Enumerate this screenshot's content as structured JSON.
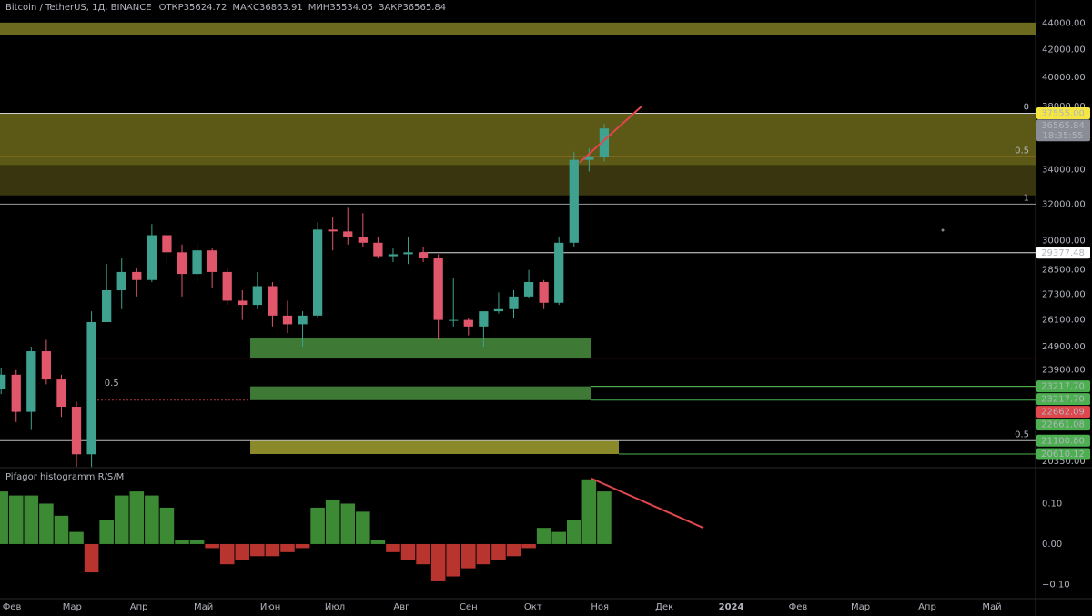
{
  "chart_data": [
    {
      "type": "candlestick",
      "title": "Bitcoin / TetherUS, 1Д, BINANCE",
      "ohlc_legend": [
        {
          "label": "ОТКР",
          "value": 35624.72
        },
        {
          "label": "МАКС",
          "value": 36863.91
        },
        {
          "label": "МИН",
          "value": 35534.05
        },
        {
          "label": "ЗАКР",
          "value": 36565.84
        }
      ],
      "x": [
        -5,
        2,
        9,
        16,
        23,
        30,
        37,
        44,
        51,
        58,
        65,
        72,
        79,
        86,
        93,
        100,
        107,
        114,
        121,
        128,
        135,
        142,
        149,
        156,
        163,
        170,
        177,
        184,
        191,
        198,
        205,
        212,
        219,
        226,
        233,
        240,
        247,
        254,
        261,
        268,
        275
      ],
      "open": [
        23100,
        23700,
        22200,
        24700,
        23500,
        22400,
        20600,
        26000,
        27500,
        28400,
        28000,
        30300,
        29400,
        28300,
        29500,
        28400,
        27000,
        26800,
        27700,
        26300,
        25900,
        26300,
        30600,
        30500,
        30200,
        29900,
        29200,
        29300,
        29400,
        29100,
        26100,
        26100,
        25800,
        26500,
        26600,
        27200,
        27900,
        26900,
        29900,
        34600,
        34800
      ],
      "high": [
        24000,
        23900,
        24900,
        25200,
        23700,
        22600,
        26500,
        28800,
        29100,
        28600,
        30900,
        30500,
        29800,
        29900,
        29600,
        28600,
        27500,
        28400,
        27900,
        27000,
        26500,
        31000,
        31300,
        31800,
        31500,
        30200,
        29600,
        30200,
        29700,
        29300,
        28100,
        26200,
        26500,
        27400,
        27500,
        28500,
        28000,
        30200,
        35100,
        35300,
        36863.91
      ],
      "low": [
        22900,
        21800,
        21500,
        23300,
        22000,
        20150,
        20150,
        26000,
        26600,
        27200,
        27900,
        28800,
        27200,
        27900,
        27600,
        26800,
        26100,
        26600,
        25800,
        25500,
        24900,
        26200,
        29500,
        29800,
        29700,
        29100,
        28900,
        28800,
        28900,
        25200,
        25800,
        25400,
        24900,
        26400,
        26200,
        27100,
        26600,
        26800,
        29700,
        33900,
        34500
      ],
      "close": [
        23700,
        22200,
        24700,
        23500,
        22400,
        20600,
        26000,
        27500,
        28400,
        28000,
        30300,
        29400,
        28300,
        29500,
        28400,
        27000,
        26800,
        27700,
        26300,
        25900,
        26300,
        30600,
        30500,
        30200,
        29900,
        29200,
        29300,
        29400,
        29100,
        26100,
        26100,
        25800,
        26500,
        26600,
        27200,
        27900,
        26900,
        29900,
        34600,
        34800,
        36565.84
      ],
      "up_color": "#3fa18f",
      "down_color": "#e0566b",
      "log_scale": true,
      "xlim": [
        -5.5,
        475.3
      ],
      "ylim": [
        20120,
        45850
      ],
      "yticks": [
        {
          "value": 44000,
          "label": "44000.00"
        },
        {
          "value": 42000,
          "label": "42000.00"
        },
        {
          "value": 40000,
          "label": "40000.00"
        },
        {
          "value": 38000,
          "label": "38000.00"
        },
        {
          "value": 34000,
          "label": "34000.00"
        },
        {
          "value": 32000,
          "label": "32000.00"
        },
        {
          "value": 30000,
          "label": "30000.00"
        },
        {
          "value": 28500,
          "label": "28500.00"
        },
        {
          "value": 27300,
          "label": "27300.00"
        },
        {
          "value": 26100,
          "label": "26100.00"
        },
        {
          "value": 24900,
          "label": "24900.00"
        },
        {
          "value": 23900,
          "label": "23900.00"
        },
        {
          "value": 20350,
          "label": "20350.00"
        }
      ],
      "zones": [
        {
          "from": 44060,
          "to": 43100,
          "x": [
            -5.5,
            475.3
          ],
          "color": "#6b6a1f"
        },
        {
          "from": 37555,
          "to": 34270,
          "x": [
            -5.5,
            475.3
          ],
          "color": "#5c5816"
        },
        {
          "from": 34270,
          "to": 32500,
          "x": [
            -5.5,
            475.3
          ],
          "color": "#38350f"
        },
        {
          "from": 25260,
          "to": 24400,
          "x": [
            110.7,
            269.1
          ],
          "color": "#3e7a36"
        },
        {
          "from": 23217.7,
          "to": 22661.08,
          "x": [
            110.7,
            269.1
          ],
          "color": "#3e7a36"
        },
        {
          "from": 21100.8,
          "to": 20610.12,
          "x": [
            110.7,
            281.8
          ],
          "color": "#8a8a2a"
        }
      ],
      "levels": [
        {
          "price": {
            "value": 37555,
            "label": "37555.00"
          },
          "x": [
            -5.5,
            475.3
          ],
          "color": "#cfcfcf",
          "fib": "0",
          "tag_color": "#f5e642",
          "tag_text_color": "#000000"
        },
        {
          "price": 34790,
          "x": [
            -5.5,
            475.3
          ],
          "color": "#d89a2e",
          "fib": "0.5"
        },
        {
          "price": 32000,
          "x": [
            -5.5,
            475.3
          ],
          "color": "#9a9a9a",
          "fib": "1"
        },
        {
          "price": 29377.48,
          "x": [
            190,
            475.3
          ],
          "color": "#e0e0e0",
          "tag_color": "#ffffff",
          "tag_text_color": "#000000"
        },
        {
          "price": 24400,
          "x": [
            38,
            475.3
          ],
          "color": "#7a2a2a"
        },
        {
          "price": {
            "value": 23217.7,
            "label": "23217.70"
          },
          "x": [
            269.1,
            475.3
          ],
          "color": "#4caf50",
          "tag_color": "#4caf50",
          "tag_text_color": "#ffffff"
        },
        {
          "price": {
            "value": 23217.7,
            "label": "23217.70"
          },
          "x": [
            269.1,
            475.3
          ],
          "color": "#4caf50",
          "tag_color": "#4caf50",
          "tag_text_color": "#ffffff"
        },
        {
          "price": 22662.09,
          "x": [
            38,
            110.7
          ],
          "color": "#b03a3a",
          "dashed": true,
          "tag_color": "#e0474c",
          "tag_text_color": "#ffffff"
        },
        {
          "price": 22661.08,
          "x": [
            269.1,
            475.3
          ],
          "color": "#4caf50",
          "tag_color": "#4caf50",
          "tag_text_color": "#ffffff"
        },
        {
          "price": {
            "value": 21100.8,
            "label": "21100.80"
          },
          "x": [
            -5.5,
            475.3
          ],
          "color": "#bdbdbd",
          "fib": "0.5",
          "tag_color": "#4caf50",
          "tag_text_color": "#ffffff"
        },
        {
          "price": 20610.12,
          "x": [
            281.8,
            475.3
          ],
          "color": "#4caf50",
          "tag_color": "#4caf50",
          "tag_text_color": "#ffffff"
        }
      ],
      "annotations": [
        {
          "text": "0.5",
          "x": 43,
          "price": 23360,
          "color": "#4f6fe0"
        }
      ],
      "current_price": {
        "value": 36565.84,
        "countdown": "18:35:55",
        "color": "#8a8d96"
      },
      "trendline": {
        "x": [
          263.6,
          292.3
        ],
        "y": [
          34440,
          38010
        ],
        "color": "#e0474c"
      }
    },
    {
      "type": "bar",
      "title": "Pifagor histogramm R/S/M",
      "x": [
        -5,
        2,
        9,
        16,
        23,
        30,
        37,
        44,
        51,
        58,
        65,
        72,
        79,
        86,
        93,
        100,
        107,
        114,
        121,
        128,
        135,
        142,
        149,
        156,
        163,
        170,
        177,
        184,
        191,
        198,
        205,
        212,
        219,
        226,
        233,
        240,
        247,
        254,
        261,
        268,
        275
      ],
      "values": [
        0.13,
        0.12,
        0.12,
        0.1,
        0.07,
        0.03,
        -0.07,
        0.06,
        0.12,
        0.13,
        0.12,
        0.09,
        0.01,
        0.01,
        -0.01,
        -0.05,
        -0.04,
        -0.03,
        -0.03,
        -0.02,
        -0.01,
        0.09,
        0.11,
        0.1,
        0.08,
        0.01,
        -0.02,
        -0.04,
        -0.05,
        -0.09,
        -0.08,
        -0.06,
        -0.05,
        -0.04,
        -0.03,
        -0.01,
        0.04,
        0.03,
        0.06,
        0.16,
        0.13
      ],
      "positive_color": "#3d8a35",
      "negative_color": "#b8342f",
      "xlim": [
        -5.5,
        475.3
      ],
      "ylim": [
        -0.135,
        0.1865
      ],
      "yticks": [
        {
          "value": 0.1,
          "label": "0.10"
        },
        {
          "value": 0,
          "label": "0.00"
        },
        {
          "value": -0.1,
          "label": "−0.10"
        }
      ],
      "xticks": [
        {
          "value": 0,
          "label": "Фев"
        },
        {
          "value": 28,
          "label": "Мар"
        },
        {
          "value": 59,
          "label": "Апр"
        },
        {
          "value": 89,
          "label": "Май"
        },
        {
          "value": 120,
          "label": "Июн"
        },
        {
          "value": 150,
          "label": "Июл"
        },
        {
          "value": 181,
          "label": "Авг"
        },
        {
          "value": 212,
          "label": "Сен"
        },
        {
          "value": 242,
          "label": "Окт"
        },
        {
          "value": 273,
          "label": "Ноя"
        },
        {
          "value": 303,
          "label": "Дек"
        },
        {
          "value": 334,
          "label": "2024"
        },
        {
          "value": 365,
          "label": "Фев"
        },
        {
          "value": 394,
          "label": "Мар"
        },
        {
          "value": 425,
          "label": "Апр"
        },
        {
          "value": 455,
          "label": "Май"
        }
      ],
      "trendline": {
        "x": [
          269.1,
          321.1
        ],
        "y": [
          0.162,
          0.04
        ],
        "color": "#e0474c"
      }
    }
  ]
}
